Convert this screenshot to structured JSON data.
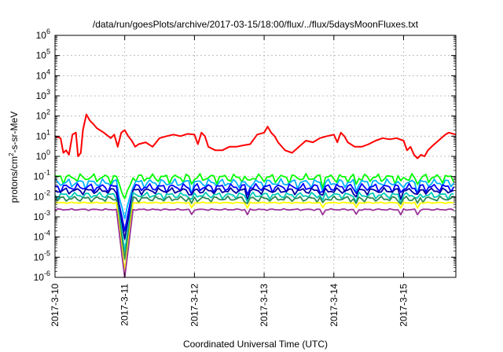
{
  "chart_data": {
    "type": "line",
    "title": "/data/run/goesPlots/archive/2017-03-15/18:00/flux/../flux/5daysMoonFluxes.txt",
    "xlabel": "Coordinated Universal Time (UTC)",
    "ylabel": "protons/cm2-s-sr-MeV",
    "ylabel_parts": {
      "before": "protons/cm",
      "sup": "2",
      "after": "-s-sr-MeV"
    },
    "yscale": "log",
    "ylim_exponents": [
      -6,
      6
    ],
    "y_tick_base": "10",
    "y_tick_exponents": [
      "6",
      "5",
      "4",
      "3",
      "2",
      "1",
      "0",
      "-1",
      "-2",
      "-3",
      "-4",
      "-5",
      "-6"
    ],
    "xlim_days": [
      0,
      5.75
    ],
    "x_ticks": [
      {
        "day": 0,
        "label": "2017-3-10"
      },
      {
        "day": 1,
        "label": "2017-3-11"
      },
      {
        "day": 2,
        "label": "2017-3-12"
      },
      {
        "day": 3,
        "label": "2017-3-13"
      },
      {
        "day": 4,
        "label": "2017-3-14"
      },
      {
        "day": 5,
        "label": "2017-3-15"
      }
    ],
    "grid": true,
    "legend": "none",
    "series": [
      {
        "color": "#ff0000",
        "points": [
          [
            0,
            10
          ],
          [
            0.08,
            8
          ],
          [
            0.12,
            1.5
          ],
          [
            0.16,
            2
          ],
          [
            0.2,
            1.2
          ],
          [
            0.25,
            12
          ],
          [
            0.3,
            15
          ],
          [
            0.33,
            1
          ],
          [
            0.37,
            1.5
          ],
          [
            0.4,
            20
          ],
          [
            0.45,
            120
          ],
          [
            0.5,
            60
          ],
          [
            0.55,
            40
          ],
          [
            0.6,
            25
          ],
          [
            0.7,
            15
          ],
          [
            0.8,
            8
          ],
          [
            0.85,
            12
          ],
          [
            0.9,
            3
          ],
          [
            0.95,
            15
          ],
          [
            1.0,
            20
          ],
          [
            1.05,
            10
          ],
          [
            1.1,
            6
          ],
          [
            1.15,
            3
          ],
          [
            1.2,
            4
          ],
          [
            1.3,
            5
          ],
          [
            1.4,
            3
          ],
          [
            1.5,
            8
          ],
          [
            1.6,
            10
          ],
          [
            1.7,
            12
          ],
          [
            1.8,
            10
          ],
          [
            1.9,
            13
          ],
          [
            2.0,
            12
          ],
          [
            2.05,
            4
          ],
          [
            2.1,
            15
          ],
          [
            2.15,
            10
          ],
          [
            2.2,
            3
          ],
          [
            2.3,
            2
          ],
          [
            2.4,
            2
          ],
          [
            2.5,
            3
          ],
          [
            2.6,
            3
          ],
          [
            2.7,
            3.5
          ],
          [
            2.8,
            4
          ],
          [
            2.9,
            12
          ],
          [
            3.0,
            15
          ],
          [
            3.05,
            30
          ],
          [
            3.1,
            15
          ],
          [
            3.15,
            10
          ],
          [
            3.2,
            5
          ],
          [
            3.3,
            2
          ],
          [
            3.4,
            1.5
          ],
          [
            3.5,
            3
          ],
          [
            3.6,
            6
          ],
          [
            3.7,
            5
          ],
          [
            3.8,
            8
          ],
          [
            3.9,
            10
          ],
          [
            4.0,
            12
          ],
          [
            4.05,
            5
          ],
          [
            4.1,
            15
          ],
          [
            4.15,
            10
          ],
          [
            4.2,
            5
          ],
          [
            4.3,
            3
          ],
          [
            4.4,
            3
          ],
          [
            4.5,
            4
          ],
          [
            4.6,
            6
          ],
          [
            4.7,
            8
          ],
          [
            4.8,
            7
          ],
          [
            4.9,
            8
          ],
          [
            5.0,
            6
          ],
          [
            5.05,
            2
          ],
          [
            5.1,
            3
          ],
          [
            5.15,
            1.2
          ],
          [
            5.2,
            0.8
          ],
          [
            5.25,
            1.2
          ],
          [
            5.3,
            1
          ],
          [
            5.35,
            2
          ],
          [
            5.4,
            3
          ],
          [
            5.5,
            6
          ],
          [
            5.6,
            12
          ],
          [
            5.65,
            15
          ],
          [
            5.75,
            12
          ]
        ]
      },
      {
        "color": "#00ff00",
        "level": 0.09,
        "wiggle": 0.55,
        "dip_day": 1.0,
        "dip_value": 0.008,
        "phase": 0.3
      },
      {
        "color": "#00b2ff",
        "level": 0.05,
        "wiggle": 0.55,
        "dip_day": 1.0,
        "dip_value": 0.0008,
        "phase": 1.1
      },
      {
        "color": "#0000ff",
        "level": 0.03,
        "wiggle": 0.5,
        "dip_day": 1.0,
        "dip_value": 0.0002,
        "phase": 2.0
      },
      {
        "color": "#0000a0",
        "level": 0.02,
        "wiggle": 0.4,
        "dip_day": 1.0,
        "dip_value": 8e-05,
        "phase": 2.7
      },
      {
        "color": "#00ccbb",
        "level": 0.012,
        "wiggle": 0.4,
        "dip_day": 1.0,
        "dip_value": 2e-05,
        "phase": 3.4
      },
      {
        "color": "#2e8b57",
        "level": 0.008,
        "wiggle": 0.35,
        "dip_day": 1.0,
        "dip_value": 8e-06,
        "phase": 4.2
      },
      {
        "color": "#ffff00",
        "level": 0.005,
        "wiggle": 0.08,
        "dip_day": 1.0,
        "dip_value": 2e-06,
        "phase": 5.0
      },
      {
        "color": "#993399",
        "level": 0.0023,
        "wiggle": 0.1,
        "dip_day": 1.0,
        "dip_value": 1e-06,
        "phase": 5.7
      }
    ]
  }
}
